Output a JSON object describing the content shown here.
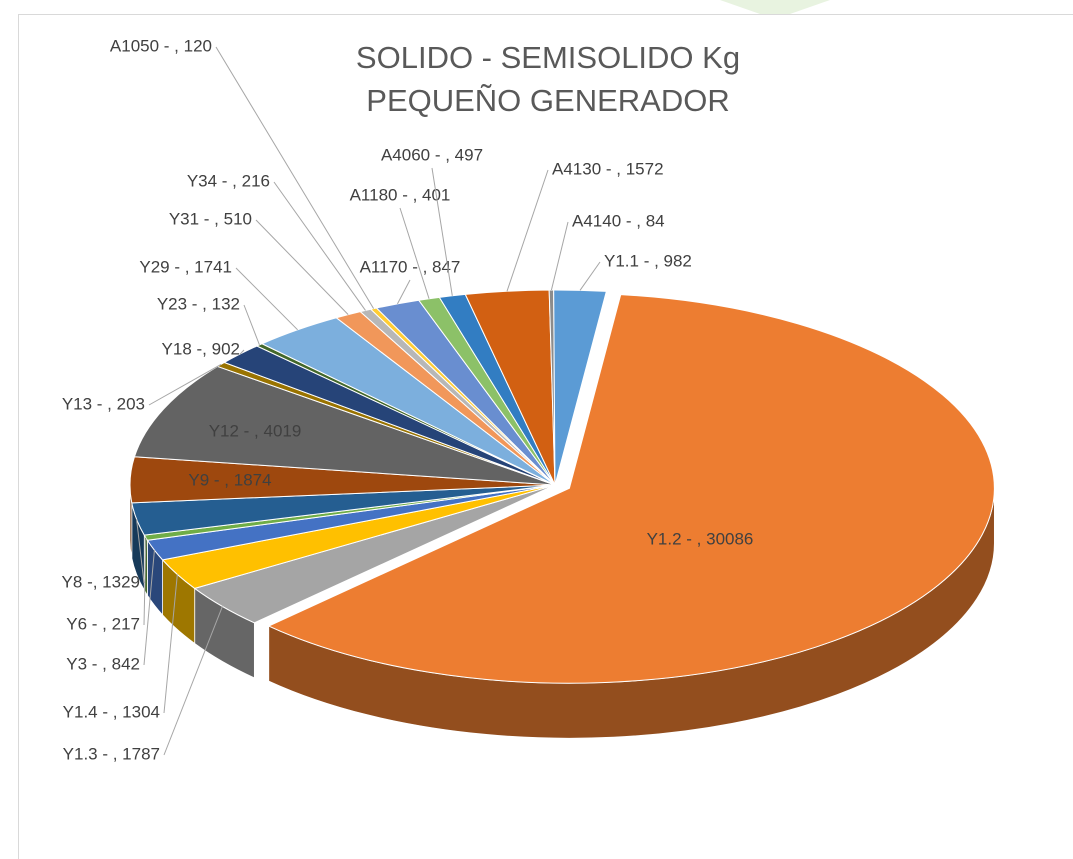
{
  "chart_data": {
    "type": "pie3d",
    "title": "SOLIDO - SEMISOLIDO  Kg",
    "subtitle": "PEQUEÑO GENERADOR",
    "values": [
      120,
      847,
      401,
      497,
      1572,
      84,
      982,
      30086,
      1787,
      1304,
      842,
      217,
      1329,
      1874,
      4019,
      203,
      902,
      132,
      1741,
      510,
      216
    ],
    "value_labels": [
      "A1050 - , 120",
      "A1170 - , 847",
      "A1180 - , 401",
      "A4060 - , 497",
      "A4130 - , 1572",
      "A4140 - , 84",
      "Y1.1 -  , 982",
      "Y1.2 - , 30086",
      "Y1.3 - , 1787",
      "Y1.4 - , 1304",
      "Y3 - , 842",
      "Y6 - , 217",
      "Y8 -, 1329",
      "Y9 - , 1874",
      "Y12 - , 4019",
      "Y13 - , 203",
      "Y18 -, 902",
      "Y23 - , 132",
      "Y29 - , 1741",
      "Y31 - , 510",
      "Y34 - , 216"
    ],
    "colors": [
      "#ffcd33",
      "#698ed0",
      "#8cc168",
      "#327dc2",
      "#d26012",
      "#8c8c8c",
      "#5b9bd5",
      "#ed7d31",
      "#a5a5a5",
      "#ffc000",
      "#4472c4",
      "#70ad47",
      "#255e91",
      "#9e480e",
      "#636363",
      "#997300",
      "#264478",
      "#43682b",
      "#7cafdd",
      "#f1975a",
      "#b7b7b7"
    ]
  }
}
